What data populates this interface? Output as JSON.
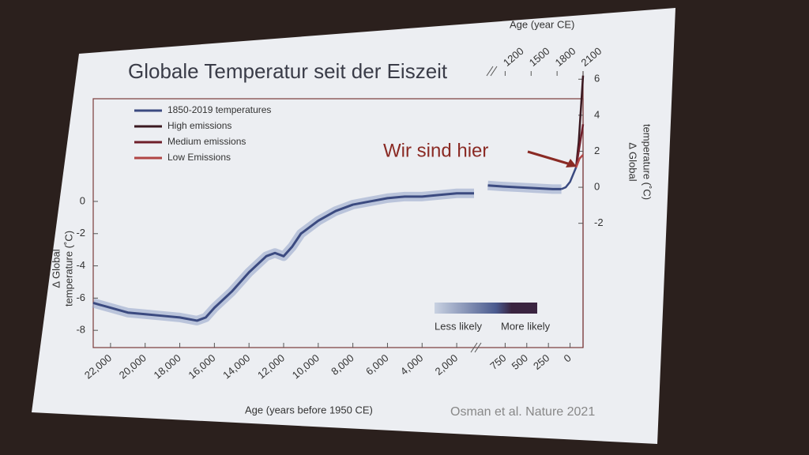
{
  "chart_data": {
    "type": "line",
    "title": "Globale Temperatur seit der Eiszeit",
    "xlabel": "Age (years before 1950 CE)",
    "x2label": "Age (year CE)",
    "ylabel": [
      "Δ Global",
      "temperature (˚C)"
    ],
    "y2label": [
      "Δ Global",
      "temperature (˚C)"
    ],
    "annotation": "Wir sind hier",
    "source": "Osman et al. Nature 2021",
    "colorbar_labels": [
      "Less likely",
      "More likely"
    ],
    "xaxes": [
      {
        "xlim": [
          23000,
          1000
        ],
        "xticks": [
          {
            "value": 22000,
            "label": "22,000"
          },
          {
            "value": 20000,
            "label": "20,000"
          },
          {
            "value": 18000,
            "label": "18,000"
          },
          {
            "value": 16000,
            "label": "16,000"
          },
          {
            "value": 14000,
            "label": "14,000"
          },
          {
            "value": 12000,
            "label": "12,000"
          },
          {
            "value": 10000,
            "label": "10,000"
          },
          {
            "value": 8000,
            "label": "8,000"
          },
          {
            "value": 6000,
            "label": "6,000"
          },
          {
            "value": 4000,
            "label": "4,000"
          },
          {
            "value": 2000,
            "label": "2,000"
          }
        ]
      },
      {
        "xlim": [
          1000,
          -150
        ],
        "xticks": [
          750,
          500,
          250,
          0
        ]
      }
    ],
    "x2lim": [
      950,
      2100
    ],
    "x2ticks": [
      1200,
      1500,
      1800,
      2100
    ],
    "ylim": [
      -9.07,
      6.37
    ],
    "yticks": [
      0,
      -2,
      -4,
      -6,
      -8
    ],
    "y2lim": [
      -8.9,
      6.45
    ],
    "y2ticks": [
      6,
      4,
      2,
      0,
      -2
    ],
    "series": [
      {
        "color": "#3b4a80",
        "xaxis": 0,
        "axis": "y",
        "x": [
          23000,
          22000,
          21000,
          20000,
          19000,
          18000,
          17000,
          16500,
          16000,
          15000,
          14000,
          13000,
          12500,
          12000,
          11500,
          11000,
          10000,
          9000,
          8000,
          7000,
          6000,
          5000,
          4000,
          3000,
          2000,
          1000
        ],
        "values": [
          -6.3,
          -6.6,
          -6.9,
          -7.0,
          -7.1,
          -7.2,
          -7.4,
          -7.2,
          -6.6,
          -5.6,
          -4.4,
          -3.4,
          -3.2,
          -3.4,
          -2.8,
          -2.0,
          -1.2,
          -0.6,
          -0.2,
          0.0,
          0.2,
          0.3,
          0.3,
          0.4,
          0.5,
          0.5
        ]
      },
      {
        "color": "#3b4a80",
        "xaxis": 1,
        "axis": "y2",
        "x": [
          950,
          800,
          600,
          400,
          200,
          100
        ],
        "values": [
          0.1,
          0.05,
          0.0,
          -0.05,
          -0.1,
          -0.1
        ]
      },
      {
        "name": "1850-2019 temperatures",
        "color": "#3b4a80",
        "xaxis": 1,
        "axis": "y2",
        "x": [
          100,
          50,
          0,
          -69
        ],
        "values": [
          -0.1,
          0.0,
          0.3,
          1.1
        ]
      },
      {
        "name": "High emissions",
        "color": "#3a1820",
        "xaxis": 1,
        "axis": "y2",
        "x": [
          -69,
          -100,
          -150
        ],
        "values": [
          1.1,
          2.5,
          6.2
        ]
      },
      {
        "name": "Medium emissions",
        "color": "#6e1e2a",
        "xaxis": 1,
        "axis": "y2",
        "x": [
          -69,
          -100,
          -150
        ],
        "values": [
          1.1,
          2.0,
          3.5
        ]
      },
      {
        "name": "Low Emissions",
        "color": "#b04444",
        "xaxis": 1,
        "axis": "y2",
        "x": [
          -69,
          -110,
          -150
        ],
        "values": [
          1.1,
          1.6,
          1.8
        ]
      }
    ]
  }
}
